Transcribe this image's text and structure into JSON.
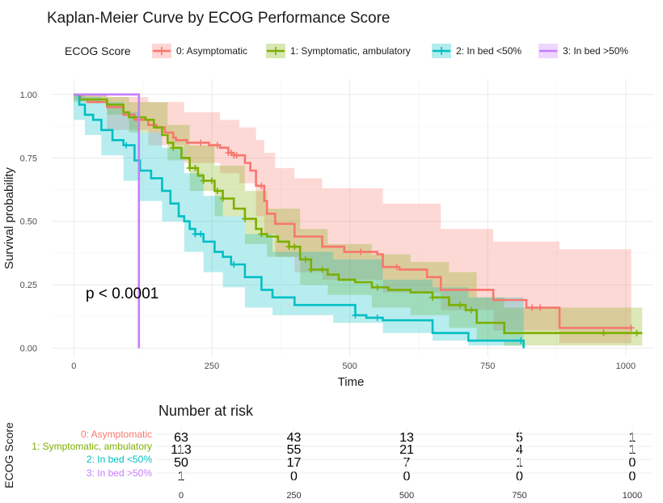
{
  "chart_data": {
    "type": "line",
    "title": "Kaplan-Meier Curve by ECOG Performance Score",
    "xlabel": "Time",
    "ylabel": "Survival probability",
    "xlim": [
      -40,
      1050
    ],
    "ylim": [
      -0.03,
      1.06
    ],
    "x_ticks": [
      0,
      250,
      500,
      750,
      1000
    ],
    "y_ticks": [
      0,
      0.25,
      0.5,
      0.75,
      1.0
    ],
    "x_tick_labels": [
      "0",
      "250",
      "500",
      "750",
      "1000"
    ],
    "y_tick_labels": [
      "0.00",
      "0.25",
      "0.50",
      "0.75",
      "1.00"
    ],
    "legend_title": "ECOG Score",
    "legend_position": "top",
    "grid": true,
    "annotation": "p < 0.0001",
    "series": [
      {
        "name": "0: Asymptomatic",
        "color": "#F8766D",
        "points": [
          [
            0,
            1.0
          ],
          [
            12,
            0.98
          ],
          [
            25,
            0.97
          ],
          [
            60,
            0.95
          ],
          [
            90,
            0.92
          ],
          [
            110,
            0.9
          ],
          [
            135,
            0.88
          ],
          [
            150,
            0.87
          ],
          [
            165,
            0.85
          ],
          [
            180,
            0.83
          ],
          [
            185,
            0.82
          ],
          [
            205,
            0.81
          ],
          [
            245,
            0.8
          ],
          [
            265,
            0.79
          ],
          [
            280,
            0.77
          ],
          [
            290,
            0.76
          ],
          [
            310,
            0.73
          ],
          [
            320,
            0.7
          ],
          [
            330,
            0.64
          ],
          [
            345,
            0.58
          ],
          [
            350,
            0.53
          ],
          [
            365,
            0.49
          ],
          [
            400,
            0.44
          ],
          [
            450,
            0.4
          ],
          [
            490,
            0.38
          ],
          [
            550,
            0.37
          ],
          [
            560,
            0.32
          ],
          [
            590,
            0.31
          ],
          [
            640,
            0.28
          ],
          [
            665,
            0.23
          ],
          [
            760,
            0.19
          ],
          [
            820,
            0.16
          ],
          [
            880,
            0.08
          ],
          [
            1010,
            0.08
          ]
        ],
        "censor_times": [
          230,
          260,
          280,
          285,
          290,
          295,
          340,
          520,
          585,
          830,
          845,
          1010
        ],
        "ci_upper": [
          [
            0,
            1.0
          ],
          [
            60,
            0.99
          ],
          [
            135,
            0.97
          ],
          [
            200,
            0.93
          ],
          [
            265,
            0.9
          ],
          [
            300,
            0.87
          ],
          [
            330,
            0.82
          ],
          [
            345,
            0.77
          ],
          [
            365,
            0.71
          ],
          [
            400,
            0.67
          ],
          [
            450,
            0.63
          ],
          [
            560,
            0.57
          ],
          [
            665,
            0.47
          ],
          [
            760,
            0.42
          ],
          [
            880,
            0.39
          ],
          [
            1010,
            0.39
          ]
        ],
        "ci_lower": [
          [
            0,
            0.98
          ],
          [
            60,
            0.86
          ],
          [
            135,
            0.8
          ],
          [
            200,
            0.73
          ],
          [
            265,
            0.69
          ],
          [
            300,
            0.65
          ],
          [
            330,
            0.52
          ],
          [
            345,
            0.45
          ],
          [
            365,
            0.36
          ],
          [
            400,
            0.3
          ],
          [
            450,
            0.27
          ],
          [
            560,
            0.22
          ],
          [
            665,
            0.15
          ],
          [
            760,
            0.07
          ],
          [
            880,
            0.02
          ],
          [
            1010,
            0.02
          ]
        ]
      },
      {
        "name": "1: Symptomatic, ambulatory",
        "color": "#7CAE00",
        "points": [
          [
            0,
            1.0
          ],
          [
            10,
            0.98
          ],
          [
            60,
            0.96
          ],
          [
            90,
            0.93
          ],
          [
            100,
            0.91
          ],
          [
            130,
            0.9
          ],
          [
            145,
            0.87
          ],
          [
            160,
            0.84
          ],
          [
            170,
            0.81
          ],
          [
            180,
            0.79
          ],
          [
            195,
            0.75
          ],
          [
            210,
            0.71
          ],
          [
            225,
            0.68
          ],
          [
            235,
            0.66
          ],
          [
            255,
            0.62
          ],
          [
            270,
            0.59
          ],
          [
            290,
            0.55
          ],
          [
            310,
            0.51
          ],
          [
            330,
            0.47
          ],
          [
            340,
            0.45
          ],
          [
            350,
            0.44
          ],
          [
            370,
            0.42
          ],
          [
            390,
            0.4
          ],
          [
            410,
            0.35
          ],
          [
            430,
            0.31
          ],
          [
            460,
            0.29
          ],
          [
            480,
            0.27
          ],
          [
            510,
            0.26
          ],
          [
            540,
            0.24
          ],
          [
            570,
            0.23
          ],
          [
            610,
            0.22
          ],
          [
            650,
            0.2
          ],
          [
            680,
            0.17
          ],
          [
            710,
            0.15
          ],
          [
            730,
            0.1
          ],
          [
            780,
            0.06
          ],
          [
            1030,
            0.06
          ]
        ],
        "censor_times": [
          180,
          210,
          220,
          235,
          250,
          260,
          270,
          310,
          340,
          390,
          400,
          420,
          430,
          450,
          550,
          650,
          700,
          720,
          960,
          1020
        ],
        "ci_upper": [
          [
            0,
            1.0
          ],
          [
            60,
            0.99
          ],
          [
            100,
            0.97
          ],
          [
            170,
            0.88
          ],
          [
            210,
            0.8
          ],
          [
            255,
            0.72
          ],
          [
            310,
            0.62
          ],
          [
            350,
            0.55
          ],
          [
            410,
            0.47
          ],
          [
            460,
            0.41
          ],
          [
            540,
            0.37
          ],
          [
            610,
            0.34
          ],
          [
            680,
            0.3
          ],
          [
            730,
            0.2
          ],
          [
            780,
            0.16
          ],
          [
            1030,
            0.16
          ]
        ],
        "ci_lower": [
          [
            0,
            0.97
          ],
          [
            60,
            0.92
          ],
          [
            100,
            0.85
          ],
          [
            170,
            0.74
          ],
          [
            210,
            0.62
          ],
          [
            255,
            0.52
          ],
          [
            310,
            0.41
          ],
          [
            350,
            0.36
          ],
          [
            410,
            0.25
          ],
          [
            460,
            0.21
          ],
          [
            540,
            0.16
          ],
          [
            610,
            0.13
          ],
          [
            680,
            0.08
          ],
          [
            730,
            0.03
          ],
          [
            780,
            0.01
          ],
          [
            1030,
            0.01
          ]
        ]
      },
      {
        "name": "2: In bed <50%",
        "color": "#00BFC4",
        "points": [
          [
            0,
            1.0
          ],
          [
            10,
            0.96
          ],
          [
            20,
            0.92
          ],
          [
            35,
            0.9
          ],
          [
            50,
            0.86
          ],
          [
            70,
            0.82
          ],
          [
            90,
            0.8
          ],
          [
            110,
            0.74
          ],
          [
            120,
            0.7
          ],
          [
            140,
            0.67
          ],
          [
            160,
            0.62
          ],
          [
            175,
            0.57
          ],
          [
            190,
            0.52
          ],
          [
            200,
            0.5
          ],
          [
            210,
            0.47
          ],
          [
            220,
            0.45
          ],
          [
            235,
            0.42
          ],
          [
            255,
            0.38
          ],
          [
            270,
            0.36
          ],
          [
            285,
            0.33
          ],
          [
            310,
            0.28
          ],
          [
            340,
            0.23
          ],
          [
            360,
            0.2
          ],
          [
            400,
            0.17
          ],
          [
            470,
            0.17
          ],
          [
            510,
            0.13
          ],
          [
            530,
            0.12
          ],
          [
            560,
            0.11
          ],
          [
            650,
            0.06
          ],
          [
            710,
            0.06
          ],
          [
            715,
            0.03
          ],
          [
            800,
            0.03
          ],
          [
            815,
            0.0
          ]
        ],
        "censor_times": [
          95,
          220,
          230,
          290,
          510,
          550,
          810
        ],
        "ci_upper": [
          [
            0,
            1.0
          ],
          [
            20,
            0.99
          ],
          [
            50,
            0.97
          ],
          [
            90,
            0.93
          ],
          [
            120,
            0.85
          ],
          [
            160,
            0.79
          ],
          [
            200,
            0.69
          ],
          [
            235,
            0.6
          ],
          [
            270,
            0.52
          ],
          [
            310,
            0.45
          ],
          [
            360,
            0.38
          ],
          [
            470,
            0.35
          ],
          [
            560,
            0.27
          ],
          [
            650,
            0.24
          ],
          [
            715,
            0.2
          ],
          [
            815,
            0.2
          ]
        ],
        "ci_lower": [
          [
            0,
            0.9
          ],
          [
            20,
            0.84
          ],
          [
            50,
            0.76
          ],
          [
            90,
            0.66
          ],
          [
            120,
            0.58
          ],
          [
            160,
            0.5
          ],
          [
            200,
            0.38
          ],
          [
            235,
            0.3
          ],
          [
            270,
            0.24
          ],
          [
            310,
            0.16
          ],
          [
            360,
            0.13
          ],
          [
            470,
            0.1
          ],
          [
            560,
            0.06
          ],
          [
            650,
            0.03
          ],
          [
            715,
            0.01
          ],
          [
            815,
            0.0
          ]
        ]
      },
      {
        "name": "3: In bed >50%",
        "color": "#C77CFF",
        "points": [
          [
            0,
            1.0
          ],
          [
            118,
            1.0
          ],
          [
            118,
            0.0
          ]
        ],
        "censor_times": [],
        "ci_upper": [],
        "ci_lower": []
      }
    ]
  },
  "risk_table": {
    "title": "Number at risk",
    "axis_label": "ECOG Score",
    "time_ticks": [
      "0",
      "250",
      "500",
      "750",
      "1000"
    ],
    "rows": [
      {
        "label": "0: Asymptomatic",
        "color": "#F8766D",
        "values": [
          "63",
          "43",
          "13",
          "5",
          "1"
        ]
      },
      {
        "label": "1: Symptomatic, ambulatory",
        "color": "#7CAE00",
        "values": [
          "113",
          "55",
          "21",
          "4",
          "1"
        ]
      },
      {
        "label": "2: In bed <50%",
        "color": "#00BFC4",
        "values": [
          "50",
          "17",
          "7",
          "1",
          "0"
        ]
      },
      {
        "label": "3: In bed >50%",
        "color": "#C77CFF",
        "values": [
          "1",
          "0",
          "0",
          "0",
          "0"
        ]
      }
    ]
  }
}
